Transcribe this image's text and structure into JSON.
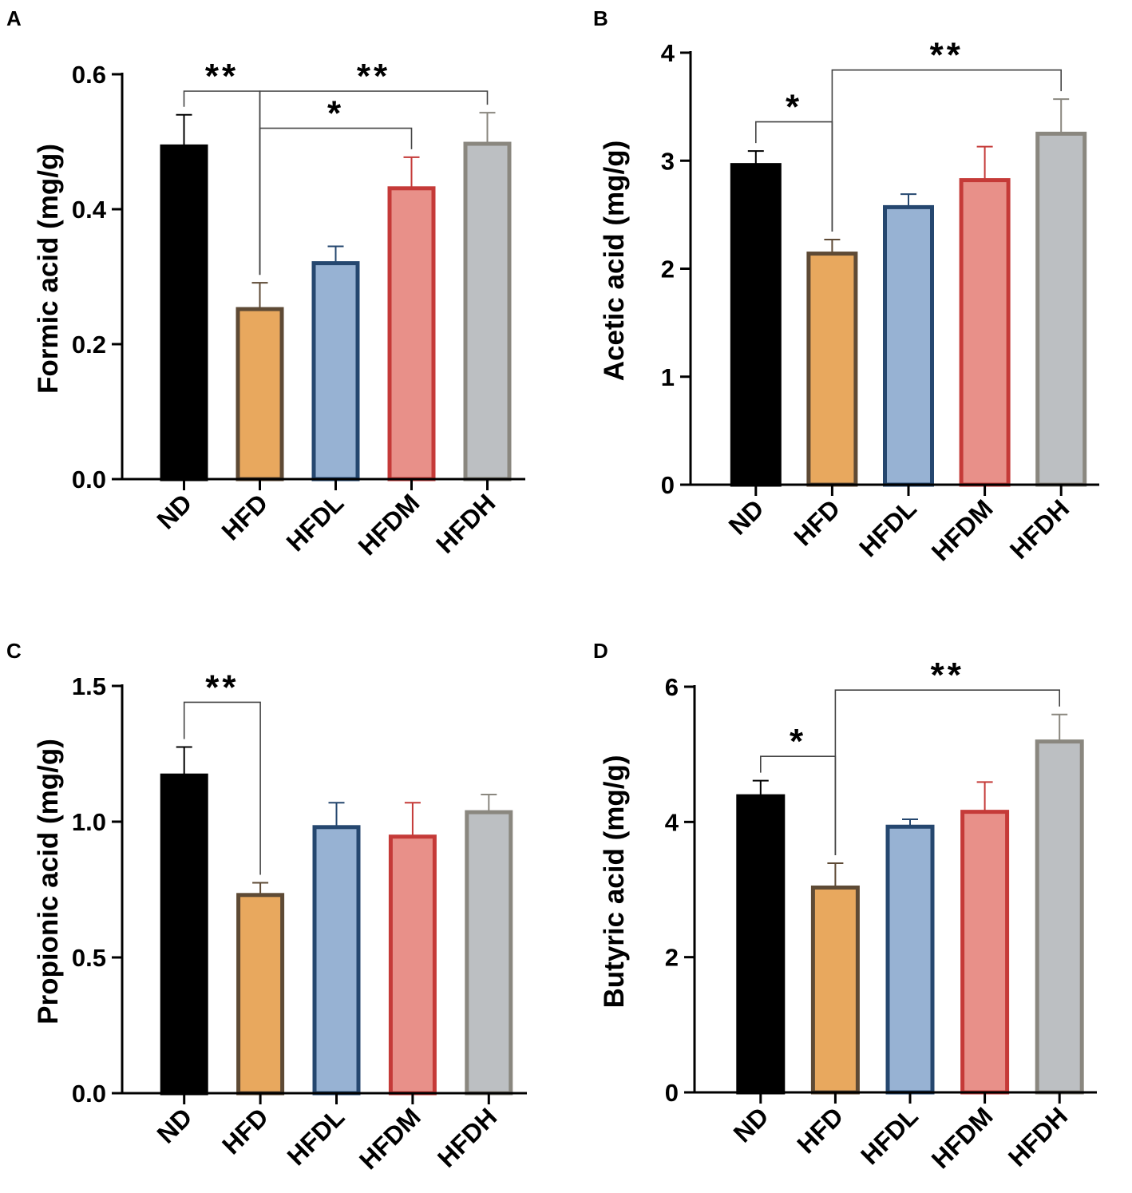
{
  "chart_data": [
    {
      "type": "bar",
      "panel": "A",
      "ylabel": "Formic acid (mg/g)",
      "categories": [
        "ND",
        "HFD",
        "HFDL",
        "HFDM",
        "HFDH"
      ],
      "values": [
        0.493,
        0.252,
        0.32,
        0.431,
        0.497
      ],
      "errors": [
        0.047,
        0.039,
        0.025,
        0.046,
        0.046
      ],
      "ylim": [
        0,
        0.6
      ],
      "ticks": [
        0.0,
        0.2,
        0.4,
        0.6
      ],
      "tick_labels": [
        "0.0",
        "0.2",
        "0.4",
        "0.6"
      ],
      "colors": {
        "fill": [
          "#000000",
          "#e8a85e",
          "#97b2d3",
          "#e89089",
          "#bcbfc2"
        ],
        "edge": [
          "#000000",
          "#5e4a35",
          "#25476f",
          "#c53a38",
          "#8a877f"
        ]
      },
      "significance": [
        {
          "from": 0,
          "to": 1,
          "label": "**",
          "level": 0.575
        },
        {
          "from": 1,
          "to": 4,
          "label": "**",
          "level": 0.575
        },
        {
          "from": 1,
          "to": 3,
          "label": "*",
          "level": 0.52
        }
      ]
    },
    {
      "type": "bar",
      "panel": "B",
      "ylabel": "Acetic acid (mg/g)",
      "categories": [
        "ND",
        "HFD",
        "HFDL",
        "HFDM",
        "HFDH"
      ],
      "values": [
        2.96,
        2.14,
        2.57,
        2.82,
        3.25
      ],
      "errors": [
        0.13,
        0.13,
        0.12,
        0.31,
        0.32
      ],
      "ylim": [
        0,
        4
      ],
      "ticks": [
        0,
        1,
        2,
        3,
        4
      ],
      "tick_labels": [
        "0",
        "1",
        "2",
        "3",
        "4"
      ],
      "colors": {
        "fill": [
          "#000000",
          "#e8a85e",
          "#97b2d3",
          "#e89089",
          "#bcbfc2"
        ],
        "edge": [
          "#000000",
          "#5e4a35",
          "#25476f",
          "#c53a38",
          "#8a877f"
        ]
      },
      "significance": [
        {
          "from": 0,
          "to": 1,
          "label": "*",
          "level": 3.36
        },
        {
          "from": 1,
          "to": 4,
          "label": "**",
          "level": 3.84
        }
      ]
    },
    {
      "type": "bar",
      "panel": "C",
      "ylabel": "Propionic acid (mg/g)",
      "categories": [
        "ND",
        "HFD",
        "HFDL",
        "HFDM",
        "HFDH"
      ],
      "values": [
        1.17,
        0.73,
        0.98,
        0.945,
        1.035
      ],
      "errors": [
        0.105,
        0.045,
        0.09,
        0.125,
        0.065
      ],
      "ylim": [
        0,
        1.5
      ],
      "ticks": [
        0.0,
        0.5,
        1.0,
        1.5
      ],
      "tick_labels": [
        "0.0",
        "0.5",
        "1.0",
        "1.5"
      ],
      "colors": {
        "fill": [
          "#000000",
          "#e8a85e",
          "#97b2d3",
          "#e89089",
          "#bcbfc2"
        ],
        "edge": [
          "#000000",
          "#5e4a35",
          "#25476f",
          "#c53a38",
          "#8a877f"
        ]
      },
      "significance": [
        {
          "from": 0,
          "to": 1,
          "label": "**",
          "level": 1.44
        }
      ]
    },
    {
      "type": "bar",
      "panel": "D",
      "ylabel": "Butyric acid (mg/g)",
      "categories": [
        "ND",
        "HFD",
        "HFDL",
        "HFDM",
        "HFDH"
      ],
      "values": [
        4.38,
        3.03,
        3.93,
        4.15,
        5.19
      ],
      "errors": [
        0.23,
        0.36,
        0.11,
        0.44,
        0.4
      ],
      "ylim": [
        0,
        6
      ],
      "ticks": [
        0,
        2,
        4,
        6
      ],
      "tick_labels": [
        "0",
        "2",
        "4",
        "6"
      ],
      "colors": {
        "fill": [
          "#000000",
          "#e8a85e",
          "#97b2d3",
          "#e89089",
          "#bcbfc2"
        ],
        "edge": [
          "#000000",
          "#5e4a35",
          "#25476f",
          "#c53a38",
          "#8a877f"
        ]
      },
      "significance": [
        {
          "from": 0,
          "to": 1,
          "label": "*",
          "level": 4.97
        },
        {
          "from": 1,
          "to": 4,
          "label": "**",
          "level": 5.95
        }
      ]
    }
  ]
}
